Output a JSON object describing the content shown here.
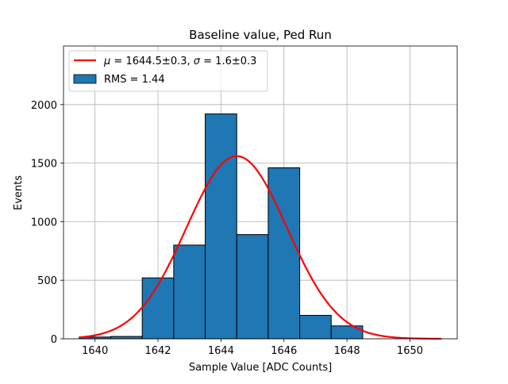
{
  "chart_data": {
    "type": "bar",
    "title": "Baseline value, Ped Run",
    "xlabel": "Sample Value [ADC Counts]",
    "ylabel": "Events",
    "xlim": [
      1639,
      1651.5
    ],
    "ylim": [
      0,
      2500
    ],
    "x_ticks": [
      1640,
      1642,
      1644,
      1646,
      1648,
      1650
    ],
    "y_ticks": [
      0,
      500,
      1000,
      1500,
      2000
    ],
    "grid": true,
    "legend_position": "top-left",
    "histogram": {
      "name": "RMS = 1.44",
      "bin_edges": [
        1639.5,
        1640.5,
        1641.5,
        1642.5,
        1643.5,
        1644.5,
        1645.5,
        1646.5,
        1647.5,
        1648.5
      ],
      "counts": [
        15,
        20,
        520,
        800,
        1920,
        890,
        1460,
        200,
        110
      ],
      "color": "#1f77b4"
    },
    "fit": {
      "legend_label": "μ = 1644.5±0.3, σ = 1.6±0.3",
      "mu_text": "μ",
      "rest_text": " = 1644.5±0.3, ",
      "sigma_text": "σ",
      "rest2_text": " = 1.6±0.3",
      "mu": 1644.5,
      "sigma": 1.6,
      "amplitude": 1560,
      "x_range": [
        1639.5,
        1651
      ],
      "color": "#ff0000"
    }
  }
}
